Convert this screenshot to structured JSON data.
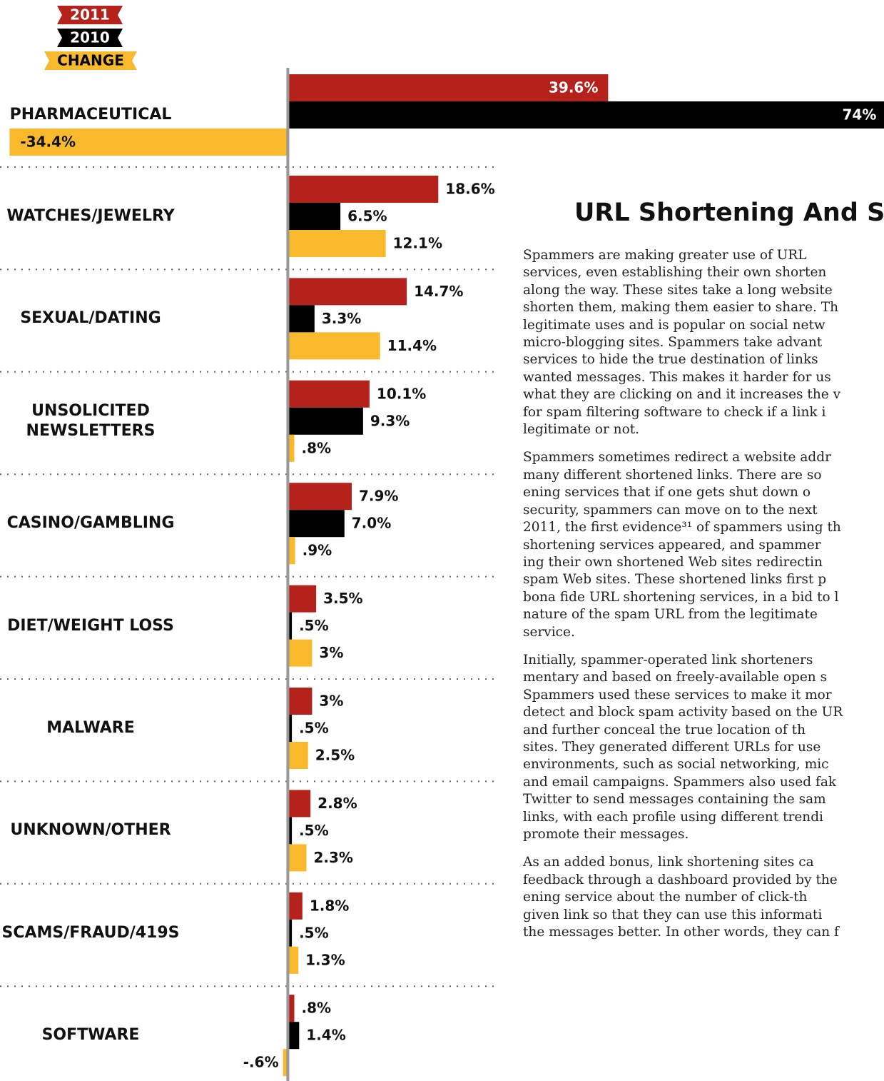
{
  "chart_data": {
    "type": "bar",
    "categories": [
      "PHARMACEUTICAL",
      "WATCHES/JEWELRY",
      "SEXUAL/DATING",
      "UNSOLICITED\nNEWSLETTERS",
      "CASINO/GAMBLING",
      "DIET/WEIGHT LOSS",
      "MALWARE",
      "UNKNOWN/OTHER",
      "SCAMS/FRAUD/419S",
      "SOFTWARE"
    ],
    "series": [
      {
        "name": "2011",
        "color": "#b5221c",
        "values": [
          39.6,
          18.6,
          14.7,
          10.1,
          7.9,
          3.5,
          3,
          2.8,
          1.8,
          0.8
        ],
        "value_labels": [
          "39.6%",
          "18.6%",
          "14.7%",
          "10.1%",
          "7.9%",
          "3.5%",
          "3%",
          "2.8%",
          "1.8%",
          ".8%"
        ]
      },
      {
        "name": "2010",
        "color": "#000000",
        "values": [
          74,
          6.5,
          3.3,
          9.3,
          7.0,
          0.5,
          0.5,
          0.5,
          0.5,
          1.4
        ],
        "value_labels": [
          "74%",
          "6.5%",
          "3.3%",
          "9.3%",
          "7.0%",
          ".5%",
          ".5%",
          ".5%",
          ".5%",
          "1.4%"
        ]
      },
      {
        "name": "CHANGE",
        "color": "#f9b92c",
        "values": [
          -34.4,
          12.1,
          11.4,
          0.8,
          0.9,
          3,
          2.5,
          2.3,
          1.3,
          -0.6
        ],
        "value_labels": [
          "-34.4%",
          "12.1%",
          "11.4%",
          ".8%",
          ".9%",
          "3%",
          "2.5%",
          "2.3%",
          "1.3%",
          "-.6%"
        ]
      }
    ],
    "xlim": [
      -34.7,
      73.7
    ]
  },
  "article": {
    "title": "URL Shortening And Sp",
    "paragraphs": [
      "Spammers are making greater use of URL\nservices, even establishing their own shorten\nalong the way. These sites take a long website\nshorten them, making them easier to share. Th\nlegitimate uses and is popular on social netw\nmicro-blogging sites. Spammers take advant\nservices to hide the true destination of links\nwanted messages. This makes it harder for us\nwhat they are clicking on and it increases the v\nfor spam filtering software to check if a link i\nlegitimate or not.",
      "Spammers sometimes redirect a website addr\nmany different shortened links. There are so\nening services that if one gets shut down o\nsecurity, spammers can move on to the next\n2011, the first evidence³¹ of spammers using th\nshortening services appeared, and spammer\ning their own shortened Web sites redirectin\nspam Web sites. These shortened links first p\nbona fide URL shortening services, in a bid to l\nnature of the spam URL from the legitimate\nservice.",
      "Initially, spammer-operated link shorteners\nmentary and based on freely-available open s\nSpammers used these services to make it mor\ndetect and block spam activity based on the UR\nand further conceal the true location of th\nsites. They generated different URLs for use\nenvironments, such as social networking, mic\nand email campaigns. Spammers also used fak\nTwitter to send messages containing the sam\nlinks, with each profile using different trendi\npromote their messages.",
      "As an added bonus, link shortening sites ca\nfeedback through a dashboard provided by the\nening service about the number of click-th\ngiven link so that they can use this informati\nthe messages better. In other words, they can f"
    ]
  }
}
